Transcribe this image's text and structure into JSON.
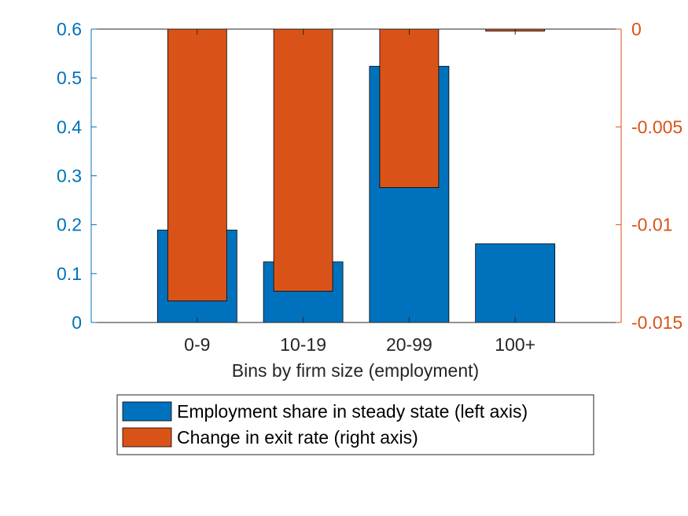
{
  "chart_data": {
    "type": "bar",
    "categories": [
      "0-9",
      "10-19",
      "20-99",
      "100+"
    ],
    "xlabel": "Bins by firm size (employment)",
    "y_left": {
      "ylim": [
        0,
        0.6
      ],
      "ticks": [
        0,
        0.1,
        0.2,
        0.3,
        0.4,
        0.5,
        0.6
      ],
      "tick_labels": [
        "0",
        "0.1",
        "0.2",
        "0.3",
        "0.4",
        "0.5",
        "0.6"
      ],
      "color": "#0072BD"
    },
    "y_right": {
      "ylim": [
        -0.015,
        0
      ],
      "ticks": [
        -0.015,
        -0.01,
        -0.005,
        0
      ],
      "tick_labels": [
        "-0.015",
        "-0.01",
        "-0.005",
        "0"
      ],
      "color": "#D95319"
    },
    "series": [
      {
        "name": "Employment share in steady state (left axis)",
        "axis": "left",
        "color": "#0072BD",
        "values": [
          0.189,
          0.124,
          0.524,
          0.161
        ]
      },
      {
        "name": "Change in exit rate (right axis)",
        "axis": "right",
        "color": "#D95319",
        "values": [
          -0.0139,
          -0.0134,
          -0.0081,
          -0.0001
        ]
      }
    ],
    "grid": false,
    "legend_position": "bottom"
  }
}
